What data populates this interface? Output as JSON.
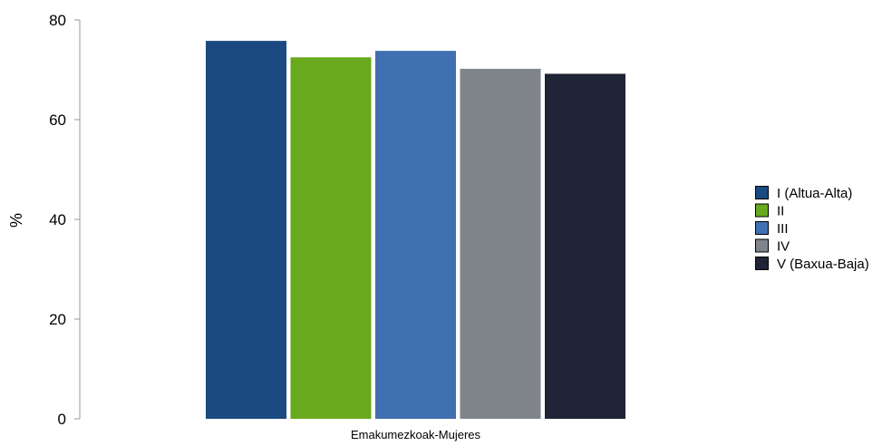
{
  "chart_data": {
    "type": "bar",
    "categories": [
      "Emakumezkoak-Mujeres"
    ],
    "series": [
      {
        "name": "I (Altua-Alta)",
        "values": [
          75.8
        ],
        "color": "#1a4a80"
      },
      {
        "name": "II",
        "values": [
          72.5
        ],
        "color": "#68a91d"
      },
      {
        "name": "III",
        "values": [
          73.8
        ],
        "color": "#4070b2"
      },
      {
        "name": "IV",
        "values": [
          70.2
        ],
        "color": "#7f858b"
      },
      {
        "name": "V (Baxua-Baja)",
        "values": [
          69.2
        ],
        "color": "#1f2436"
      }
    ],
    "title": "",
    "xlabel": "",
    "ylabel": "%",
    "ylim": [
      0,
      80
    ],
    "yticks": [
      0,
      20,
      40,
      60,
      80
    ],
    "grid": false,
    "legend_position": "right"
  }
}
